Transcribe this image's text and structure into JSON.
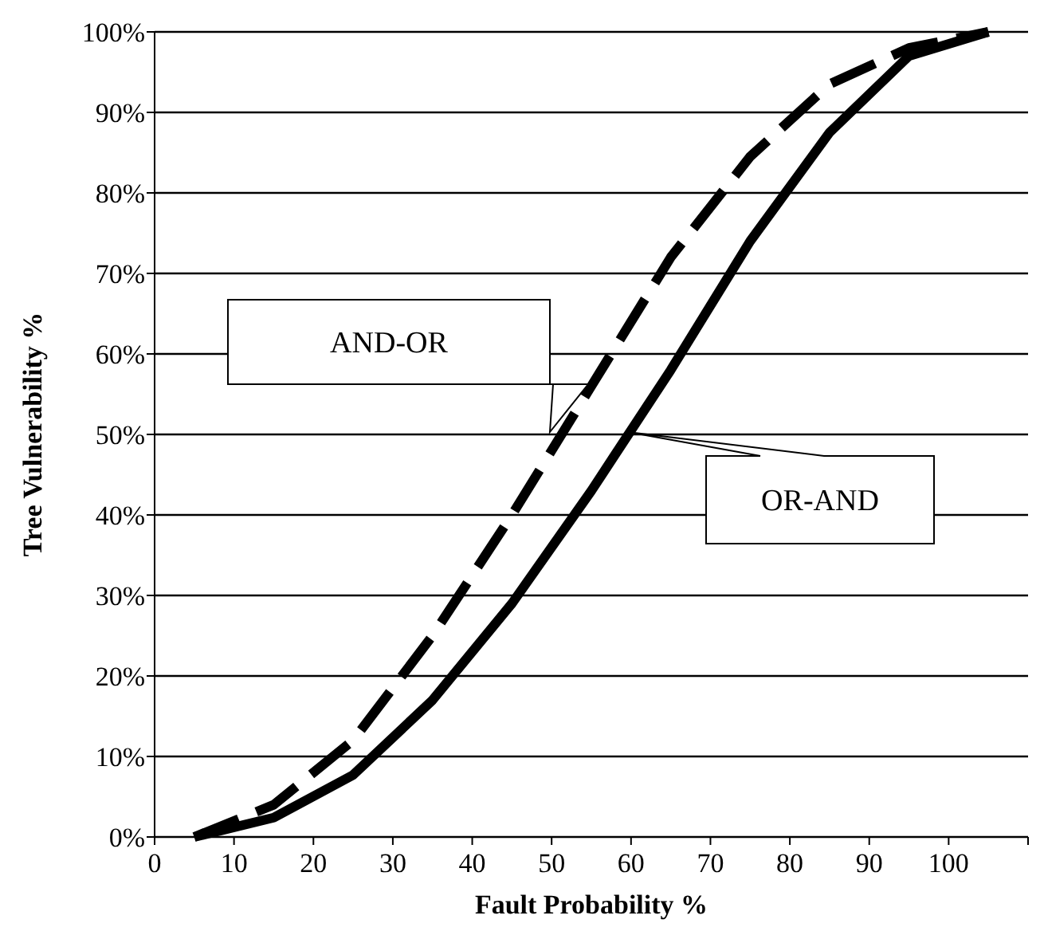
{
  "chart_data": {
    "type": "line",
    "xlabel": "Fault Probability %",
    "ylabel": "Tree Vulnerability %",
    "x": [
      5,
      15,
      25,
      35,
      45,
      55,
      65,
      75,
      85,
      95,
      105
    ],
    "xlim": [
      0,
      110
    ],
    "xticks": [
      0,
      10,
      20,
      30,
      40,
      50,
      60,
      70,
      80,
      90,
      100,
      {
        "value": 110,
        "label": null
      }
    ],
    "ylim": [
      0,
      100
    ],
    "yticks": [
      {
        "value": 0,
        "label": "0%"
      },
      {
        "value": 10,
        "label": "10%"
      },
      {
        "value": 20,
        "label": "20%"
      },
      {
        "value": 30,
        "label": "30%"
      },
      {
        "value": 40,
        "label": "40%"
      },
      {
        "value": 50,
        "label": "50%"
      },
      {
        "value": 60,
        "label": "60%"
      },
      {
        "value": 70,
        "label": "70%"
      },
      {
        "value": 80,
        "label": "80%"
      },
      {
        "value": 90,
        "label": "90%"
      },
      {
        "value": 100,
        "label": "100%"
      }
    ],
    "grid": "y",
    "annotations": [
      "AND-OR",
      "OR-AND"
    ],
    "series": [
      {
        "color": "#000000",
        "line_style": "dashed",
        "values": [
          0,
          4,
          12,
          25,
          40,
          56,
          72,
          84.5,
          93.5,
          98,
          100
        ]
      },
      {
        "color": "#000000",
        "line_style": "solid",
        "values": [
          0,
          2.4,
          7.7,
          17,
          29,
          43,
          58,
          74,
          87.5,
          97,
          100
        ]
      }
    ]
  }
}
